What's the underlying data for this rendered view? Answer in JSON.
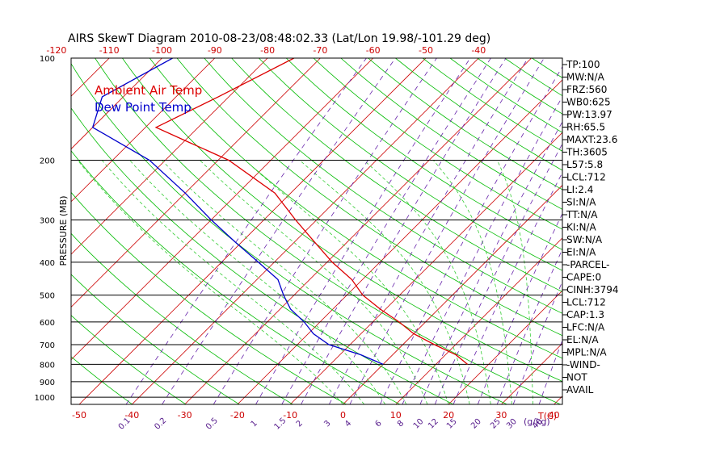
{
  "chart_data": {
    "type": "line",
    "title": "AIRS SkewT Diagram 2010-08-23/08:48:02.33 (Lat/Lon 19.98/-101.29 deg)",
    "ylabel": "PRESSURE (MB)",
    "xlabel_bottom": "T(C)",
    "mixing_ratio_unit": "(g/kg)",
    "legend": {
      "position": "top-left",
      "entries": [
        "Ambient Air Temp",
        "Dew Point Temp"
      ]
    },
    "pressure_ticks": [
      "100",
      "200",
      "300",
      "400",
      "500",
      "600",
      "700",
      "800",
      "900",
      "1000"
    ],
    "pressure_lines": [
      200,
      300,
      400,
      500,
      600,
      700,
      800,
      900,
      1000
    ],
    "top_temp_ticks": [
      "-120",
      "-110",
      "-100",
      "-90",
      "-80",
      "-70",
      "-60",
      "-50",
      "-40"
    ],
    "bottom_temp_ticks": [
      "-50",
      "-40",
      "-30",
      "-20",
      "-10",
      "0",
      "10",
      "20",
      "30",
      "40"
    ],
    "mixing_ratio_ticks": [
      "0.1",
      "0.2",
      "0.5",
      "1",
      "1.5",
      "2",
      "3",
      "4",
      "6",
      "8",
      "10",
      "12",
      "15",
      "20",
      "25",
      "30",
      "40"
    ],
    "grid": true,
    "colors": {
      "air_temp": "#dd0000",
      "dew_point": "#0000cc",
      "isotherm": "#cc0000",
      "dry_adiabat": "#00bb00",
      "moist_adiabat": "#33cc33",
      "mixing_ratio": "#6622aa",
      "bottom_labels": "#cc0000",
      "mixing_labels": "#551a8b"
    },
    "series": [
      {
        "name": "Ambient Air Temp",
        "points": [
          [
            100,
            -75
          ],
          [
            130,
            -82
          ],
          [
            160,
            -88
          ],
          [
            175,
            -80
          ],
          [
            200,
            -68
          ],
          [
            250,
            -53
          ],
          [
            300,
            -44
          ],
          [
            350,
            -36
          ],
          [
            400,
            -29
          ],
          [
            450,
            -22
          ],
          [
            500,
            -17
          ],
          [
            550,
            -11
          ],
          [
            600,
            -5
          ],
          [
            650,
            0
          ],
          [
            700,
            6
          ],
          [
            750,
            12
          ],
          [
            800,
            16
          ]
        ]
      },
      {
        "name": "Dew Point Temp",
        "points": [
          [
            100,
            -98
          ],
          [
            130,
            -104
          ],
          [
            160,
            -100
          ],
          [
            200,
            -83
          ],
          [
            250,
            -70
          ],
          [
            300,
            -60
          ],
          [
            350,
            -51
          ],
          [
            400,
            -43
          ],
          [
            450,
            -36
          ],
          [
            500,
            -32
          ],
          [
            550,
            -28
          ],
          [
            600,
            -23
          ],
          [
            650,
            -19
          ],
          [
            700,
            -14
          ],
          [
            750,
            -6
          ],
          [
            800,
            0
          ]
        ]
      }
    ],
    "indices": [
      "TP:100",
      "MW:N/A",
      "FRZ:560",
      "WB0:625",
      "PW:13.97",
      "RH:65.5",
      "MAXT:23.6",
      "TH:3605",
      "L57:5.8",
      "LCL:712",
      "LI:2.4",
      "SI:N/A",
      "TT:N/A",
      "KI:N/A",
      "SW:N/A",
      "EI:N/A",
      "-PARCEL-",
      "CAPE:0",
      "CINH:3794",
      "LCL:712",
      "CAP:1.3",
      "LFC:N/A",
      "EL:N/A",
      "MPL:N/A",
      "-WIND-",
      "NOT",
      "AVAIL"
    ]
  }
}
